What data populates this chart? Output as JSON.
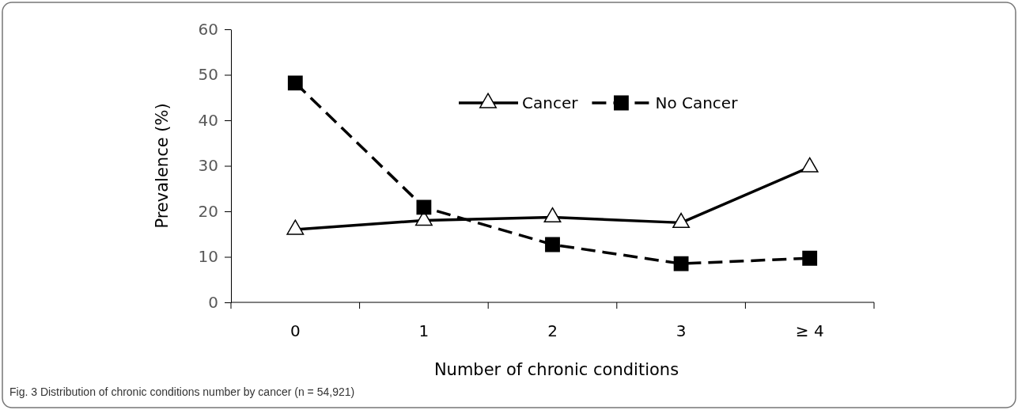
{
  "chart_data": {
    "type": "line",
    "xlabel": "Number of chronic conditions",
    "ylabel": "Prevalence (%)",
    "categories": [
      "0",
      "1",
      "2",
      "3",
      "≥ 4"
    ],
    "series": [
      {
        "name": "Cancer",
        "color": "#000000",
        "values": [
          16,
          18,
          18.7,
          17.5,
          29.7
        ],
        "marker": "triangle",
        "line_style": "solid"
      },
      {
        "name": "No Cancer",
        "color": "#000000",
        "values": [
          48.2,
          20.9,
          12.7,
          8.5,
          9.7
        ],
        "marker": "square",
        "line_style": "dashed"
      }
    ],
    "ylim": [
      0,
      60
    ],
    "yticks": [
      0,
      10,
      20,
      30,
      40,
      50,
      60
    ],
    "grid": false,
    "legend": "top",
    "annotations": [
      "Fig. 3 Distribution of chronic conditions number by cancer (n = 54,921)"
    ]
  }
}
